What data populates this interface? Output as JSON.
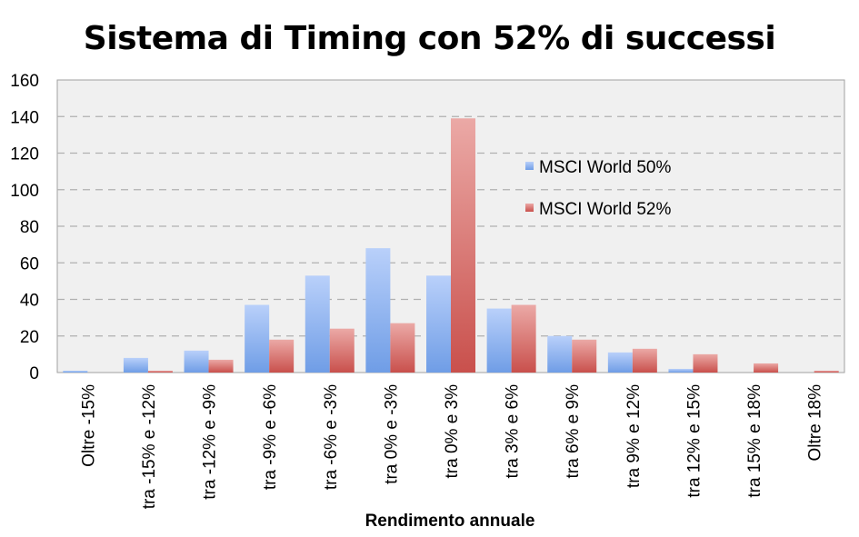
{
  "chart_data": {
    "type": "bar",
    "title": "Sistema di Timing con 52% di successi",
    "xlabel": "Rendimento annuale",
    "ylabel": "",
    "ylim": [
      0,
      160
    ],
    "yticks": [
      0,
      20,
      40,
      60,
      80,
      100,
      120,
      140,
      160
    ],
    "grid": true,
    "legend_position": "right",
    "categories": [
      "Oltre -15%",
      "tra -15% e -12%",
      "tra -12% e -9%",
      "tra -9% e -6%",
      "tra -6% e -3%",
      "tra 0% e -3%",
      "tra 0% e 3%",
      "tra 3% e 6%",
      "tra 6% e 9%",
      "tra 9% e 12%",
      "tra 12% e 15%",
      "tra 15% e 18%",
      "Oltre 18%"
    ],
    "series": [
      {
        "name": "MSCI World 50%",
        "color": "#8fb4f0",
        "values": [
          1,
          8,
          12,
          37,
          53,
          68,
          53,
          35,
          20,
          11,
          2,
          0,
          0
        ]
      },
      {
        "name": "MSCI World 52%",
        "color": "#d66a66",
        "values": [
          0,
          1,
          7,
          18,
          24,
          27,
          139,
          37,
          18,
          13,
          10,
          5,
          1
        ]
      }
    ]
  }
}
